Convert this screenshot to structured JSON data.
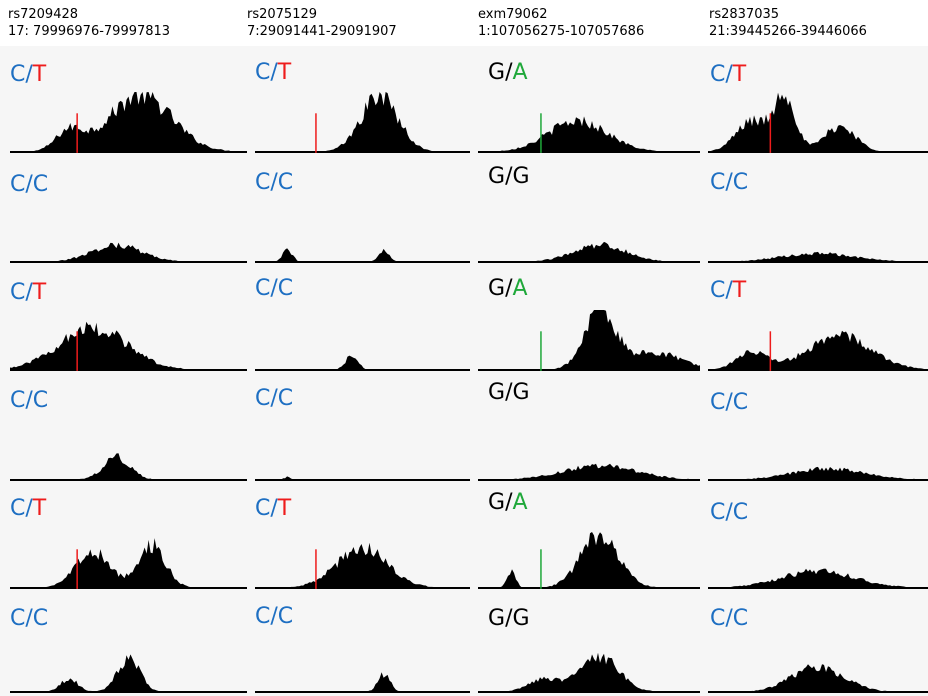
{
  "colors": {
    "background": "#f6f6f6",
    "coverage_fill": "#000000",
    "allele_C": "#1e6fc2",
    "allele_T": "#ee1c1c",
    "allele_G": "#000000",
    "allele_A": "#1fa83a"
  },
  "columns": [
    {
      "snp_id": "rs7209428",
      "region": "17: 79996976-79997813"
    },
    {
      "snp_id": "rs2075129",
      "region": "7:29091441-29091907"
    },
    {
      "snp_id": "exm79062",
      "region": "1:107056275-107057686"
    },
    {
      "snp_id": "rs2837035",
      "region": "21:39445266-39446066"
    }
  ],
  "rows": [
    {
      "genotypes": [
        {
          "a1": "C",
          "a2": "T",
          "a1_color": "#1e6fc2",
          "a2_color": "#ee1c1c"
        },
        {
          "a1": "C",
          "a2": "T",
          "a1_color": "#1e6fc2",
          "a2_color": "#ee1c1c"
        },
        {
          "a1": "G",
          "a2": "A",
          "a1_color": "#000000",
          "a2_color": "#1fa83a"
        },
        {
          "a1": "C",
          "a2": "T",
          "a1_color": "#1e6fc2",
          "a2_color": "#ee1c1c"
        }
      ]
    },
    {
      "genotypes": [
        {
          "a1": "C",
          "a2": "C",
          "a1_color": "#1e6fc2",
          "a2_color": "#1e6fc2"
        },
        {
          "a1": "C",
          "a2": "C",
          "a1_color": "#1e6fc2",
          "a2_color": "#1e6fc2"
        },
        {
          "a1": "G",
          "a2": "G",
          "a1_color": "#000000",
          "a2_color": "#000000"
        },
        {
          "a1": "C",
          "a2": "C",
          "a1_color": "#1e6fc2",
          "a2_color": "#1e6fc2"
        }
      ]
    },
    {
      "genotypes": [
        {
          "a1": "C",
          "a2": "T",
          "a1_color": "#1e6fc2",
          "a2_color": "#ee1c1c"
        },
        {
          "a1": "C",
          "a2": "C",
          "a1_color": "#1e6fc2",
          "a2_color": "#1e6fc2"
        },
        {
          "a1": "G",
          "a2": "A",
          "a1_color": "#000000",
          "a2_color": "#1fa83a"
        },
        {
          "a1": "C",
          "a2": "T",
          "a1_color": "#1e6fc2",
          "a2_color": "#ee1c1c"
        }
      ]
    },
    {
      "genotypes": [
        {
          "a1": "C",
          "a2": "C",
          "a1_color": "#1e6fc2",
          "a2_color": "#1e6fc2"
        },
        {
          "a1": "C",
          "a2": "C",
          "a1_color": "#1e6fc2",
          "a2_color": "#1e6fc2"
        },
        {
          "a1": "G",
          "a2": "G",
          "a1_color": "#000000",
          "a2_color": "#000000"
        },
        {
          "a1": "C",
          "a2": "C",
          "a1_color": "#1e6fc2",
          "a2_color": "#1e6fc2"
        }
      ]
    },
    {
      "genotypes": [
        {
          "a1": "C",
          "a2": "T",
          "a1_color": "#1e6fc2",
          "a2_color": "#ee1c1c"
        },
        {
          "a1": "C",
          "a2": "T",
          "a1_color": "#1e6fc2",
          "a2_color": "#ee1c1c"
        },
        {
          "a1": "G",
          "a2": "A",
          "a1_color": "#000000",
          "a2_color": "#1fa83a"
        },
        {
          "a1": "C",
          "a2": "C",
          "a1_color": "#1e6fc2",
          "a2_color": "#1e6fc2"
        }
      ]
    },
    {
      "genotypes": [
        {
          "a1": "C",
          "a2": "C",
          "a1_color": "#1e6fc2",
          "a2_color": "#1e6fc2"
        },
        {
          "a1": "C",
          "a2": "C",
          "a1_color": "#1e6fc2",
          "a2_color": "#1e6fc2"
        },
        {
          "a1": "G",
          "a2": "G",
          "a1_color": "#000000",
          "a2_color": "#000000"
        },
        {
          "a1": "C",
          "a2": "C",
          "a1_color": "#1e6fc2",
          "a2_color": "#1e6fc2"
        }
      ]
    }
  ]
}
